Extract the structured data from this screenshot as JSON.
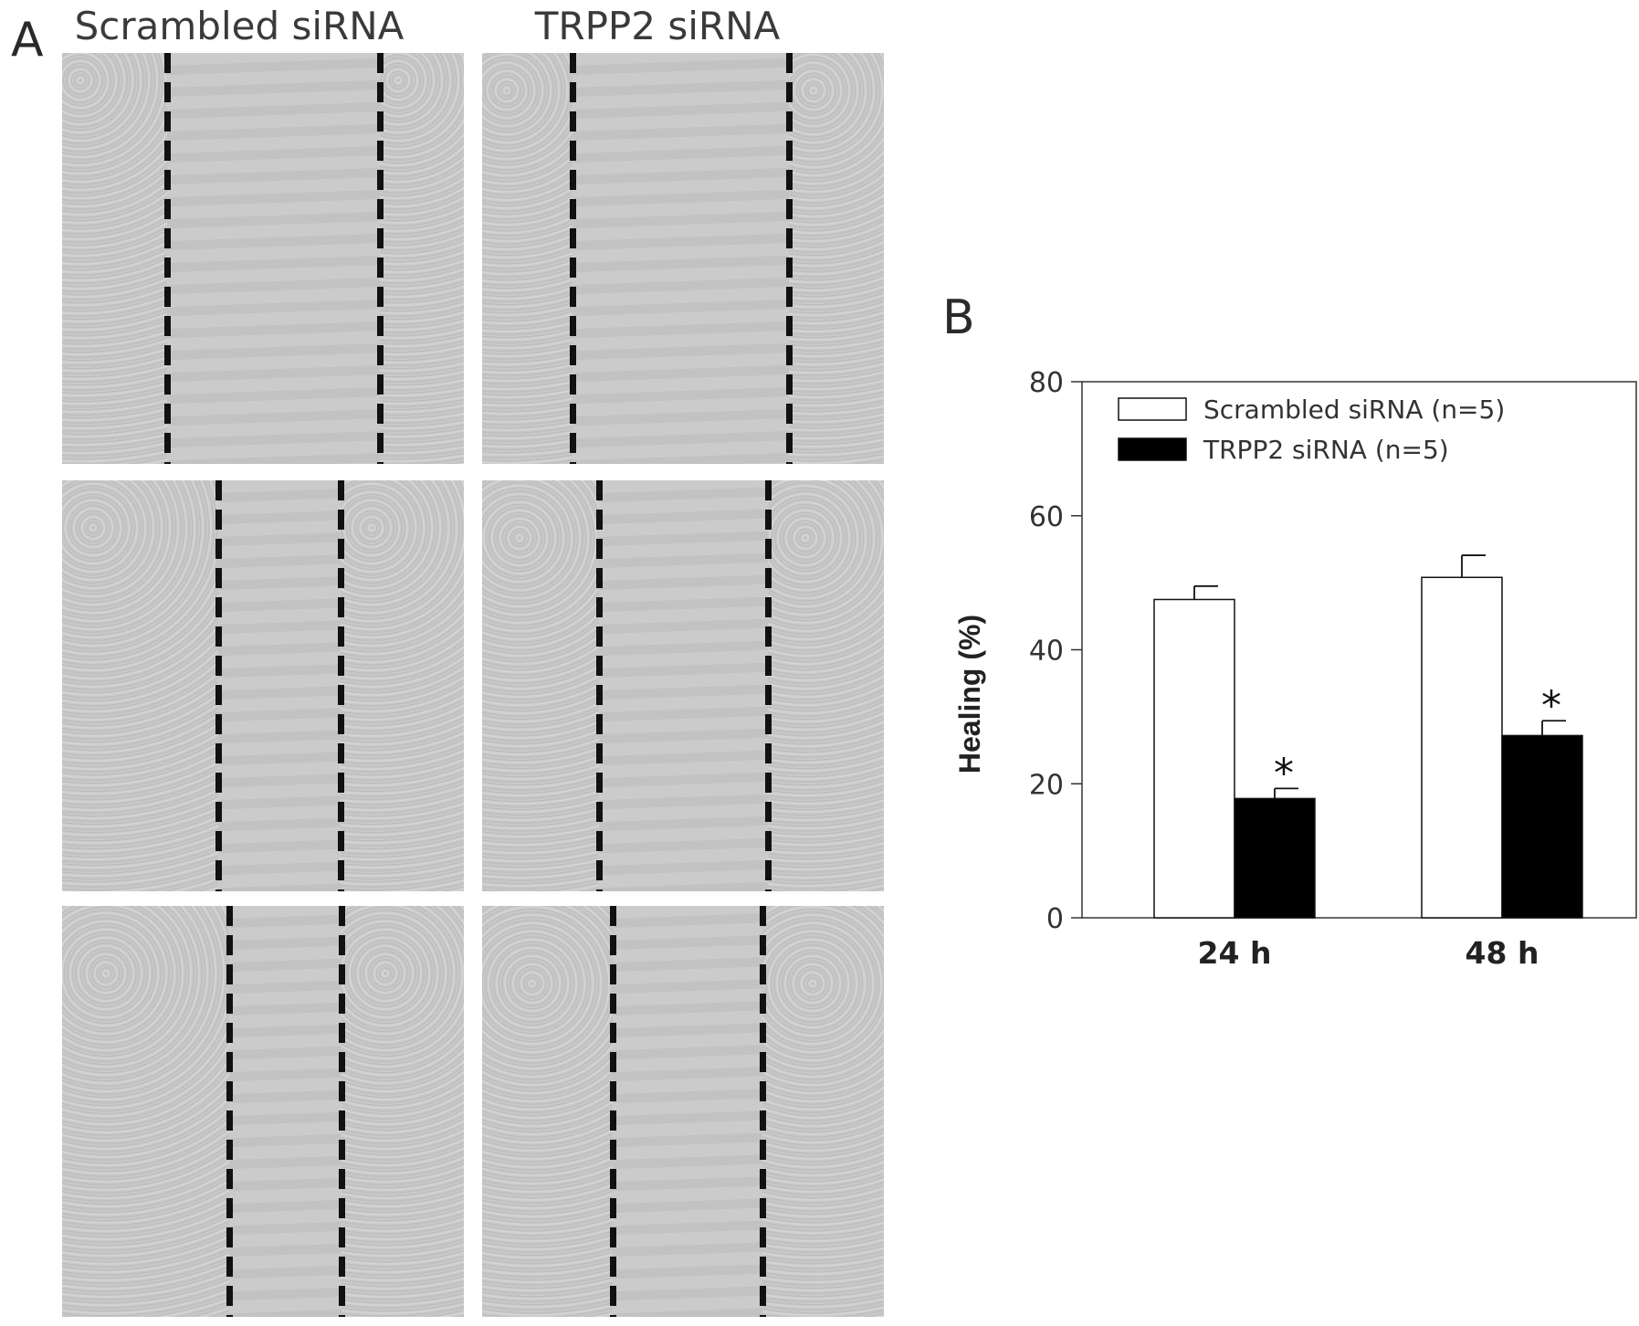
{
  "panel_a": {
    "label": "A",
    "columns": [
      "Scrambled siRNA",
      "TRPP2 siRNA"
    ],
    "image_rows": 3
  },
  "panel_b": {
    "label": "B"
  },
  "colors": {
    "scrambled_fill": "#ffffff",
    "trpp2_fill": "#000000",
    "axis": "#333333"
  },
  "chart_data": {
    "type": "bar",
    "categories": [
      "24 h",
      "48 h"
    ],
    "series": [
      {
        "name": "Scrambled siRNA (n=5)",
        "values": [
          47.5,
          50.8
        ],
        "errors": [
          2.0,
          3.3
        ],
        "significance": [
          "",
          ""
        ]
      },
      {
        "name": "TRPP2 siRNA (n=5)",
        "values": [
          17.8,
          27.2
        ],
        "errors": [
          1.5,
          2.2
        ],
        "significance": [
          "*",
          "*"
        ]
      }
    ],
    "title": "",
    "xlabel": "",
    "ylabel": "Healing (%)",
    "ylim": [
      0,
      80
    ],
    "yticks": [
      "0",
      "20",
      "40",
      "60",
      "80"
    ],
    "grid": false,
    "legend_position": "top-left"
  }
}
